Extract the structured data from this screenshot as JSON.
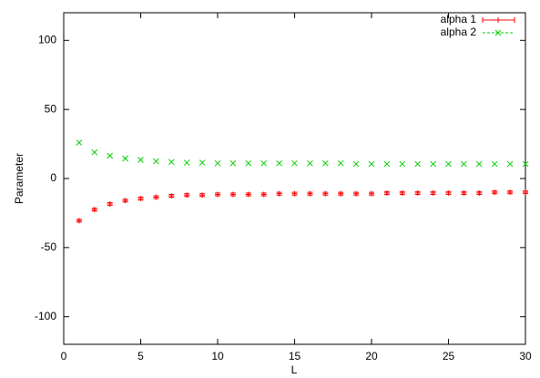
{
  "chart_data": {
    "type": "scatter",
    "x_label": "L",
    "y_label": "Parameter",
    "x": [
      1,
      2,
      3,
      4,
      5,
      6,
      7,
      8,
      9,
      10,
      11,
      12,
      13,
      14,
      15,
      16,
      17,
      18,
      19,
      20,
      21,
      22,
      23,
      24,
      25,
      26,
      27,
      28,
      29,
      30
    ],
    "series": [
      {
        "name": "alpha 1",
        "color": "#ff0000",
        "marker": "plus",
        "error_bars": true,
        "values": [
          -30.5,
          -22.5,
          -18.5,
          -16,
          -14.5,
          -13.5,
          -12.5,
          -12,
          -12,
          -11.5,
          -11.5,
          -11.5,
          -11.5,
          -11,
          -11,
          -11,
          -11,
          -11,
          -11,
          -11,
          -10.5,
          -10.5,
          -10.5,
          -10.5,
          -10.5,
          -10.5,
          -10.5,
          -10,
          -10,
          -10
        ],
        "errors": [
          1,
          1,
          1,
          1,
          1,
          1,
          1,
          1,
          1,
          1,
          1,
          1,
          1,
          1,
          1,
          1,
          1,
          1,
          1,
          1,
          1,
          1,
          1,
          1,
          1,
          1,
          1,
          1,
          1,
          1
        ]
      },
      {
        "name": "alpha 2",
        "color": "#00cc00",
        "marker": "cross",
        "error_bars": false,
        "values": [
          26,
          19,
          16.5,
          14.5,
          13.5,
          12.5,
          12,
          11.5,
          11.5,
          11,
          11,
          11,
          11,
          11,
          11,
          11,
          11,
          11,
          10.5,
          10.5,
          10.5,
          10.5,
          10.5,
          10.5,
          10.5,
          10.5,
          10.5,
          10.5,
          10.5,
          10.5
        ]
      }
    ],
    "xlim": [
      0,
      30
    ],
    "xticks": [
      0,
      5,
      10,
      15,
      20,
      25,
      30
    ],
    "ylim": [
      -120,
      120
    ],
    "yticks": [
      -100,
      -50,
      0,
      50,
      100
    ],
    "legend": "top-right"
  }
}
